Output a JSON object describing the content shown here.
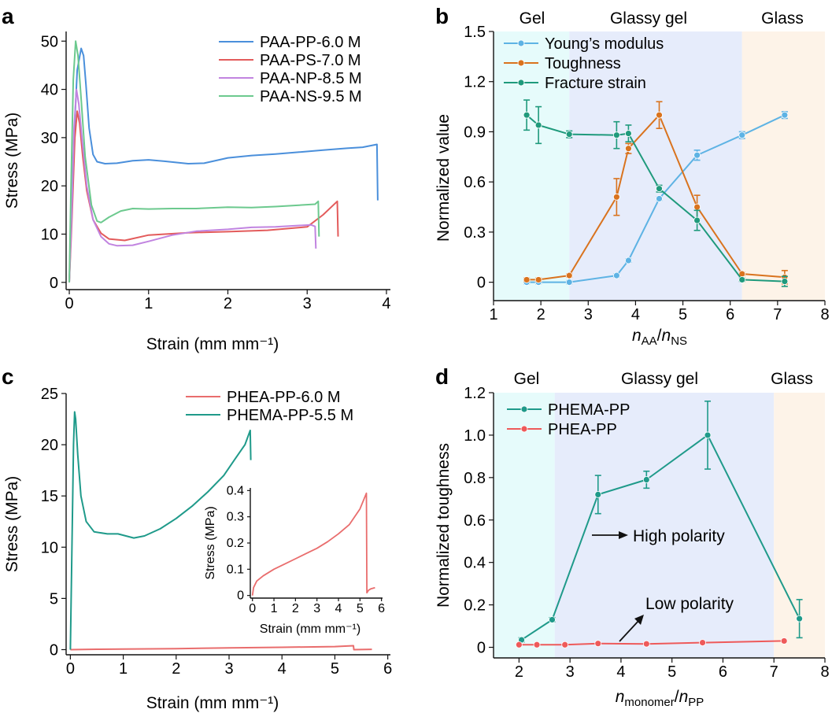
{
  "panel_letters": [
    "a",
    "b",
    "c",
    "d"
  ],
  "chart_data": [
    {
      "panel": "a",
      "type": "line",
      "xlabel": "Strain (mm mm⁻¹)",
      "ylabel": "Stress (MPa)",
      "xlim": [
        0,
        4
      ],
      "ylim": [
        0,
        50
      ],
      "xticks": [
        0,
        1,
        2,
        3,
        4
      ],
      "yticks": [
        0,
        10,
        20,
        30,
        40,
        50
      ],
      "legend_position": "top-right",
      "series": [
        {
          "name": "PAA-PP-6.0 M",
          "color": "#4a8fdb",
          "points": [
            [
              0,
              0
            ],
            [
              0.02,
              12
            ],
            [
              0.06,
              30
            ],
            [
              0.1,
              44
            ],
            [
              0.15,
              48.5
            ],
            [
              0.18,
              47
            ],
            [
              0.21,
              41
            ],
            [
              0.25,
              32
            ],
            [
              0.3,
              26.5
            ],
            [
              0.35,
              25
            ],
            [
              0.45,
              24.6
            ],
            [
              0.6,
              24.7
            ],
            [
              0.8,
              25.2
            ],
            [
              1.0,
              25.4
            ],
            [
              1.2,
              25.1
            ],
            [
              1.5,
              24.6
            ],
            [
              1.7,
              24.7
            ],
            [
              2.0,
              25.8
            ],
            [
              2.3,
              26.3
            ],
            [
              2.6,
              26.6
            ],
            [
              2.9,
              27
            ],
            [
              3.2,
              27.4
            ],
            [
              3.5,
              27.8
            ],
            [
              3.7,
              28
            ],
            [
              3.88,
              28.6
            ],
            [
              3.89,
              17
            ]
          ]
        },
        {
          "name": "PAA-PS-7.0 M",
          "color": "#e35b5b",
          "points": [
            [
              0,
              0
            ],
            [
              0.03,
              12
            ],
            [
              0.07,
              30
            ],
            [
              0.1,
              35.5
            ],
            [
              0.13,
              33
            ],
            [
              0.17,
              26
            ],
            [
              0.22,
              19
            ],
            [
              0.3,
              13
            ],
            [
              0.4,
              10.2
            ],
            [
              0.5,
              9
            ],
            [
              0.7,
              8.7
            ],
            [
              1.0,
              9.8
            ],
            [
              1.5,
              10.3
            ],
            [
              2.0,
              10.5
            ],
            [
              2.5,
              10.8
            ],
            [
              3.0,
              11.5
            ],
            [
              3.2,
              14
            ],
            [
              3.38,
              16.8
            ],
            [
              3.39,
              9.5
            ]
          ]
        },
        {
          "name": "PAA-NP-8.5 M",
          "color": "#c184e0",
          "points": [
            [
              0,
              0
            ],
            [
              0.03,
              14
            ],
            [
              0.06,
              32
            ],
            [
              0.09,
              40
            ],
            [
              0.12,
              37
            ],
            [
              0.16,
              30
            ],
            [
              0.22,
              20
            ],
            [
              0.3,
              13
            ],
            [
              0.4,
              9.5
            ],
            [
              0.5,
              8
            ],
            [
              0.6,
              7.6
            ],
            [
              0.8,
              7.7
            ],
            [
              1.0,
              8.5
            ],
            [
              1.3,
              9.8
            ],
            [
              1.6,
              10.6
            ],
            [
              2.0,
              11
            ],
            [
              2.3,
              11.4
            ],
            [
              2.6,
              11.5
            ],
            [
              2.9,
              11.8
            ],
            [
              3.05,
              11.9
            ],
            [
              3.1,
              11.6
            ],
            [
              3.11,
              7
            ]
          ]
        },
        {
          "name": "PAA-NS-9.5 M",
          "color": "#6cc98e",
          "points": [
            [
              0,
              0
            ],
            [
              0.02,
              18
            ],
            [
              0.05,
              42
            ],
            [
              0.08,
              50
            ],
            [
              0.11,
              47
            ],
            [
              0.15,
              38
            ],
            [
              0.2,
              26
            ],
            [
              0.28,
              16
            ],
            [
              0.35,
              12.7
            ],
            [
              0.4,
              12.4
            ],
            [
              0.5,
              13.5
            ],
            [
              0.65,
              14.8
            ],
            [
              0.8,
              15.3
            ],
            [
              1.0,
              15.2
            ],
            [
              1.3,
              15.3
            ],
            [
              1.6,
              15.3
            ],
            [
              2.0,
              15.6
            ],
            [
              2.3,
              15.5
            ],
            [
              2.6,
              15.7
            ],
            [
              2.9,
              16
            ],
            [
              3.1,
              16.2
            ],
            [
              3.14,
              16.8
            ],
            [
              3.15,
              9.5
            ]
          ]
        }
      ]
    },
    {
      "panel": "b",
      "type": "line",
      "xlabel": "nAA/nNS",
      "xlabel_parts": {
        "n1": "n",
        "sub1": "AA",
        "slash": "/",
        "n2": "n",
        "sub2": "NS"
      },
      "ylabel": "Normalized value",
      "xlim": [
        1,
        8
      ],
      "ylim": [
        -0.1,
        1.5
      ],
      "xticks": [
        1,
        2,
        3,
        4,
        5,
        6,
        7,
        8
      ],
      "yticks": [
        0,
        0.3,
        0.6,
        0.9,
        1.2,
        1.5
      ],
      "ytick_labels": [
        "0",
        "0.3",
        "0.6",
        "0.9",
        "1.2",
        "1.5"
      ],
      "regions": [
        {
          "label": "Gel",
          "from": 1,
          "to": 2.6,
          "color": "#e6fbfb"
        },
        {
          "label": "Glassy gel",
          "from": 2.6,
          "to": 6.25,
          "color": "#e6ecfb"
        },
        {
          "label": "Glass",
          "from": 6.25,
          "to": 8,
          "color": "#fdf3e8"
        }
      ],
      "legend_position": "top-left",
      "series": [
        {
          "name": "Young’s modulus",
          "color": "#5eb3e4",
          "x": [
            1.7,
            1.95,
            2.6,
            3.6,
            3.85,
            4.5,
            5.3,
            6.25,
            7.15
          ],
          "y": [
            0.0,
            0.0,
            0.0,
            0.04,
            0.13,
            0.5,
            0.76,
            0.88,
            1.0
          ],
          "err": [
            0.01,
            0.01,
            0.01,
            0.01,
            0.01,
            0.01,
            0.03,
            0.02,
            0.02
          ]
        },
        {
          "name": "Toughness",
          "color": "#d9731e",
          "x": [
            1.7,
            1.95,
            2.6,
            3.6,
            3.85,
            4.5,
            5.3,
            6.25,
            7.15
          ],
          "y": [
            0.015,
            0.015,
            0.04,
            0.51,
            0.8,
            1.0,
            0.45,
            0.05,
            0.03
          ],
          "err": [
            0.01,
            0.01,
            0.01,
            0.11,
            0.03,
            0.08,
            0.07,
            0.01,
            0.04
          ]
        },
        {
          "name": "Fracture strain",
          "color": "#1f9a7c",
          "x": [
            1.7,
            1.95,
            2.6,
            3.6,
            3.85,
            4.5,
            5.3,
            6.25,
            7.15
          ],
          "y": [
            1.0,
            0.94,
            0.885,
            0.88,
            0.89,
            0.56,
            0.37,
            0.015,
            0.005
          ],
          "err": [
            0.09,
            0.11,
            0.02,
            0.08,
            0.05,
            0.02,
            0.06,
            0.01,
            0.03
          ]
        }
      ]
    },
    {
      "panel": "c",
      "type": "line",
      "xlabel": "Strain (mm mm⁻¹)",
      "ylabel": "Stress (MPa)",
      "xlim": [
        0,
        6
      ],
      "ylim": [
        0,
        25
      ],
      "xticks": [
        0,
        1,
        2,
        3,
        4,
        5,
        6
      ],
      "yticks": [
        0,
        5,
        10,
        15,
        20,
        25
      ],
      "legend_position": "top-right",
      "series": [
        {
          "name": "PHEA-PP-6.0 M",
          "color": "#e96d6d",
          "points": [
            [
              0,
              0
            ],
            [
              0.5,
              0.04
            ],
            [
              1,
              0.06
            ],
            [
              2,
              0.1
            ],
            [
              3,
              0.17
            ],
            [
              4,
              0.23
            ],
            [
              5,
              0.3
            ],
            [
              5.35,
              0.38
            ],
            [
              5.36,
              0.0
            ],
            [
              5.7,
              0.03
            ]
          ]
        },
        {
          "name": "PHEMA-PP-5.5 M",
          "color": "#1f9a8a",
          "points": [
            [
              0,
              0
            ],
            [
              0.03,
              10
            ],
            [
              0.06,
              20
            ],
            [
              0.08,
              23.2
            ],
            [
              0.1,
              22.5
            ],
            [
              0.14,
              19
            ],
            [
              0.2,
              15
            ],
            [
              0.3,
              12.5
            ],
            [
              0.45,
              11.5
            ],
            [
              0.7,
              11.3
            ],
            [
              0.9,
              11.3
            ],
            [
              1.2,
              10.9
            ],
            [
              1.4,
              11.1
            ],
            [
              1.7,
              11.8
            ],
            [
              2.0,
              12.8
            ],
            [
              2.3,
              14
            ],
            [
              2.6,
              15.4
            ],
            [
              2.9,
              17
            ],
            [
              3.1,
              18.5
            ],
            [
              3.3,
              20
            ],
            [
              3.4,
              21.4
            ],
            [
              3.41,
              18.5
            ]
          ]
        }
      ],
      "inset": {
        "xlabel": "Strain (mm mm⁻¹)",
        "ylabel": "Stress (MPa)",
        "xlim": [
          0,
          6
        ],
        "ylim": [
          0,
          0.4
        ],
        "xticks": [
          0,
          1,
          2,
          3,
          4,
          5,
          6
        ],
        "yticks": [
          0,
          0.1,
          0.2,
          0.3,
          0.4
        ],
        "ytick_labels": [
          "0",
          "0.1",
          "0.2",
          "0.3",
          "0.4"
        ],
        "color": "#e96d6d",
        "points": [
          [
            0,
            0
          ],
          [
            0.05,
            0.03
          ],
          [
            0.2,
            0.055
          ],
          [
            0.5,
            0.075
          ],
          [
            1,
            0.1
          ],
          [
            1.5,
            0.12
          ],
          [
            2,
            0.14
          ],
          [
            2.5,
            0.16
          ],
          [
            3,
            0.18
          ],
          [
            3.5,
            0.205
          ],
          [
            4,
            0.235
          ],
          [
            4.5,
            0.27
          ],
          [
            5,
            0.33
          ],
          [
            5.3,
            0.39
          ],
          [
            5.32,
            0.01
          ],
          [
            5.4,
            0.02
          ],
          [
            5.5,
            0.025
          ],
          [
            5.7,
            0.03
          ]
        ]
      }
    },
    {
      "panel": "d",
      "type": "line",
      "xlabel": "nmonomer/nPP",
      "xlabel_parts": {
        "n1": "n",
        "sub1": "monomer",
        "slash": "/",
        "n2": "n",
        "sub2": "PP"
      },
      "ylabel": "Normalized toughness",
      "xlim": [
        1.5,
        8
      ],
      "ylim": [
        -0.05,
        1.2
      ],
      "xticks": [
        2,
        3,
        4,
        5,
        6,
        7,
        8
      ],
      "yticks": [
        0,
        0.2,
        0.4,
        0.6,
        0.8,
        1.0,
        1.2
      ],
      "ytick_labels": [
        "0",
        "0.2",
        "0.4",
        "0.6",
        "0.8",
        "1.0",
        "1.2"
      ],
      "regions": [
        {
          "label": "Gel",
          "from": 1.5,
          "to": 2.7,
          "color": "#e6fbfb"
        },
        {
          "label": "Glassy gel",
          "from": 2.7,
          "to": 7.0,
          "color": "#e6ecfb"
        },
        {
          "label": "Glass",
          "from": 7.0,
          "to": 8,
          "color": "#fdf3e8"
        }
      ],
      "legend_position": "top-left",
      "annotations": [
        {
          "text": "High polarity",
          "arrow": "right"
        },
        {
          "text": "Low polarity",
          "arrow": "up-right"
        }
      ],
      "series": [
        {
          "name": "PHEMA-PP",
          "color": "#1f9a8a",
          "x": [
            2.05,
            2.65,
            3.55,
            4.5,
            5.7,
            7.5
          ],
          "y": [
            0.035,
            0.13,
            0.72,
            0.79,
            1.0,
            0.135
          ],
          "err": [
            0.01,
            0.01,
            0.09,
            0.04,
            0.16,
            0.09
          ]
        },
        {
          "name": "PHEA-PP",
          "color": "#ee5a5a",
          "x": [
            2.0,
            2.35,
            2.9,
            3.55,
            4.5,
            5.6,
            7.2
          ],
          "y": [
            0.012,
            0.012,
            0.012,
            0.018,
            0.016,
            0.022,
            0.03
          ],
          "err": [
            0.0,
            0.0,
            0.0,
            0.0,
            0.0,
            0.0,
            0.0
          ]
        }
      ]
    }
  ]
}
